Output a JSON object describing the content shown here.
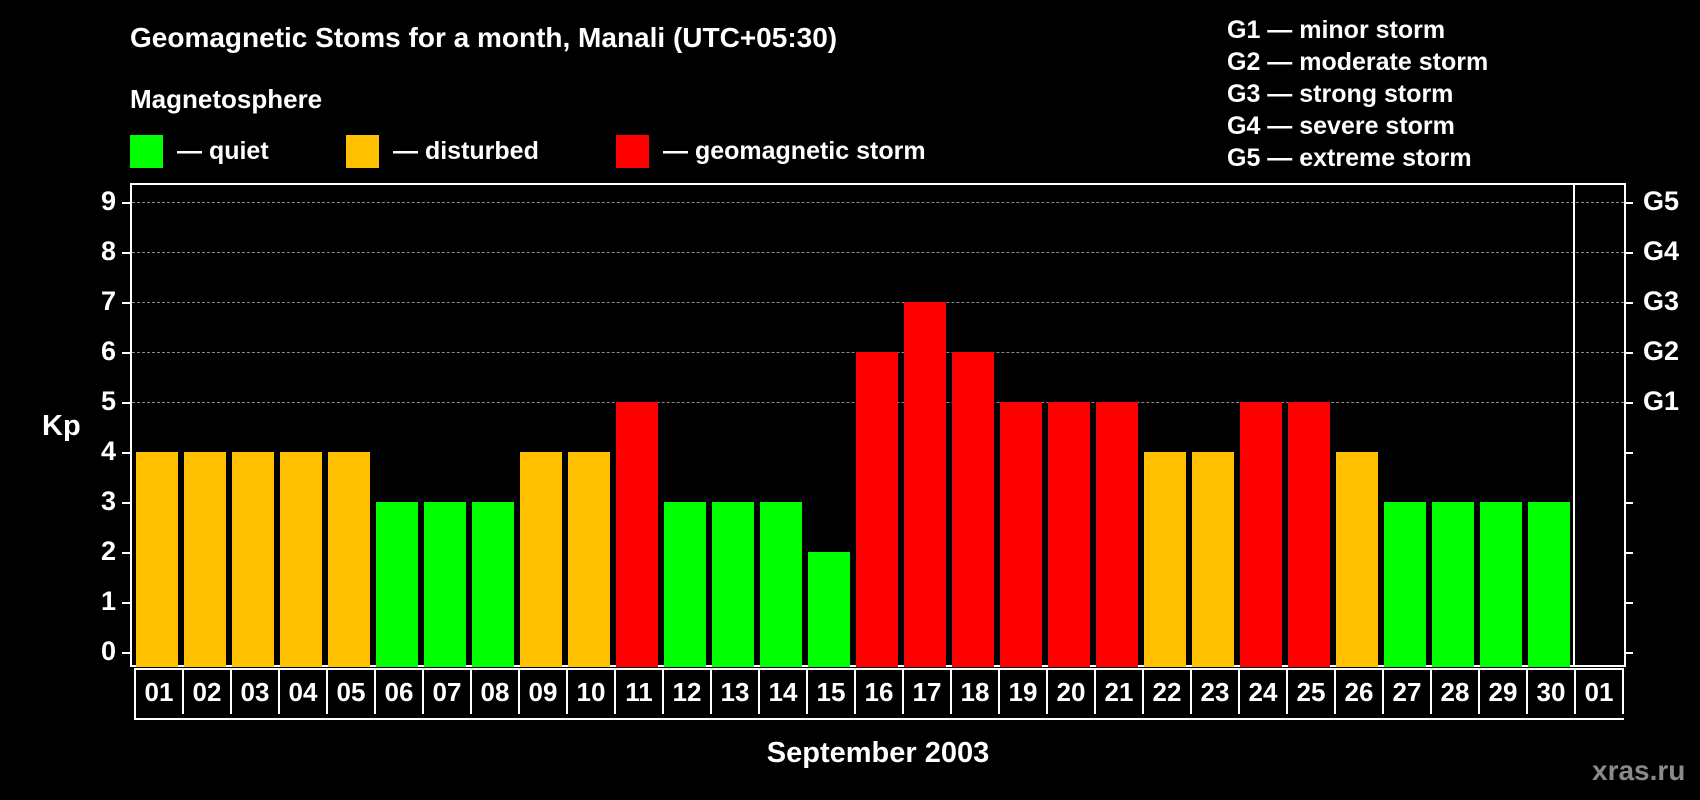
{
  "header": {
    "title": "Geomagnetic Stoms for a month, Manali (UTC+05:30)",
    "subtitle": "Magnetosphere"
  },
  "legend": [
    {
      "label": "— quiet",
      "color": "#00ff00"
    },
    {
      "label": "— disturbed",
      "color": "#ffc000"
    },
    {
      "label": "— geomagnetic storm",
      "color": "#ff0000"
    }
  ],
  "g_scale": [
    "G1 — minor storm",
    "G2 — moderate storm",
    "G3 — strong storm",
    "G4 — severe storm",
    "G5 — extreme storm"
  ],
  "axis": {
    "ylabel": "Kp",
    "xlabel": "September 2003",
    "y_ticks": [
      "0",
      "1",
      "2",
      "3",
      "4",
      "5",
      "6",
      "7",
      "8",
      "9"
    ],
    "g_ticks": [
      {
        "value": 5,
        "label": "G1"
      },
      {
        "value": 6,
        "label": "G2"
      },
      {
        "value": 7,
        "label": "G3"
      },
      {
        "value": 8,
        "label": "G4"
      },
      {
        "value": 9,
        "label": "G5"
      }
    ],
    "next_month_label": "01"
  },
  "watermark": "xras.ru",
  "colors": {
    "quiet": "#00ff00",
    "disturbed": "#ffc000",
    "storm": "#ff0000",
    "grid": "#8a8a8a",
    "background": "#000000"
  },
  "chart_data": {
    "type": "bar",
    "title": "Geomagnetic Stoms for a month, Manali (UTC+05:30)",
    "xlabel": "September 2003",
    "ylabel": "Kp",
    "ylim": [
      0,
      9
    ],
    "grid": "dashed horizontal at Kp 5-9",
    "legend_position": "top",
    "categories": [
      "01",
      "02",
      "03",
      "04",
      "05",
      "06",
      "07",
      "08",
      "09",
      "10",
      "11",
      "12",
      "13",
      "14",
      "15",
      "16",
      "17",
      "18",
      "19",
      "20",
      "21",
      "22",
      "23",
      "24",
      "25",
      "26",
      "27",
      "28",
      "29",
      "30"
    ],
    "values": [
      4,
      4,
      4,
      4,
      4,
      3,
      3,
      3,
      4,
      4,
      5,
      3,
      3,
      3,
      2,
      6,
      7,
      6,
      5,
      5,
      5,
      4,
      4,
      5,
      5,
      4,
      3,
      3,
      3,
      3
    ],
    "status": [
      "disturbed",
      "disturbed",
      "disturbed",
      "disturbed",
      "disturbed",
      "quiet",
      "quiet",
      "quiet",
      "disturbed",
      "disturbed",
      "storm",
      "quiet",
      "quiet",
      "quiet",
      "quiet",
      "storm",
      "storm",
      "storm",
      "storm",
      "storm",
      "storm",
      "disturbed",
      "disturbed",
      "storm",
      "storm",
      "disturbed",
      "quiet",
      "quiet",
      "quiet",
      "quiet"
    ],
    "right_axis": {
      "5": "G1",
      "6": "G2",
      "7": "G3",
      "8": "G4",
      "9": "G5"
    }
  }
}
